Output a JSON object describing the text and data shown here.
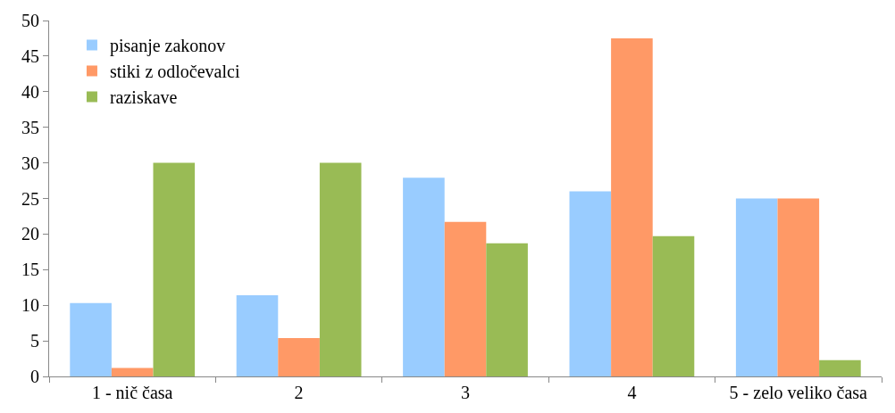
{
  "chart_data": {
    "type": "bar",
    "categories": [
      "1 - nič časa",
      "2",
      "3",
      "4",
      "5 - zelo veliko časa"
    ],
    "series": [
      {
        "name": "pisanje zakonov",
        "color": "#99ccff",
        "values": [
          10.3,
          11.4,
          27.9,
          26,
          25
        ]
      },
      {
        "name": "stiki z odločevalci",
        "color": "#ff9966",
        "values": [
          1.2,
          5.4,
          21.7,
          47.5,
          25
        ]
      },
      {
        "name": "raziskave",
        "color": "#99bb55",
        "values": [
          30,
          30,
          18.7,
          19.7,
          2.3
        ]
      }
    ],
    "ylim": [
      0,
      50
    ],
    "yticks": [
      0,
      5,
      10,
      15,
      20,
      25,
      30,
      35,
      40,
      45,
      50
    ],
    "legend": "top left"
  }
}
